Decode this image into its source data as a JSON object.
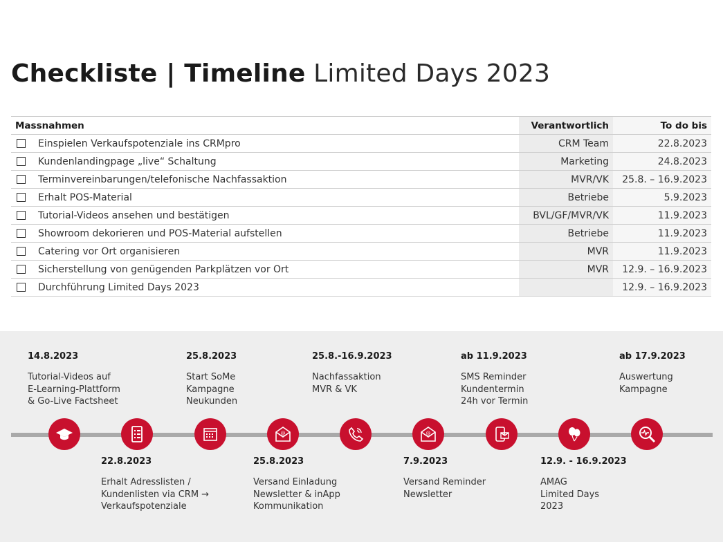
{
  "title": {
    "bold": "Checkliste | Timeline",
    "light": "Limited Days 2023"
  },
  "table": {
    "headers": {
      "task": "Massnahmen",
      "responsible": "Verantwortlich",
      "due": "To do bis"
    },
    "rows": [
      {
        "task": "Einspielen Verkaufspotenziale ins CRMpro",
        "responsible": "CRM Team",
        "due": "22.8.2023"
      },
      {
        "task": "Kundenlandingpage „live“ Schaltung",
        "responsible": "Marketing",
        "due": "24.8.2023"
      },
      {
        "task": "Terminvereinbarungen/telefonische Nachfassaktion",
        "responsible": "MVR/VK",
        "due": "25.8. – 16.9.2023"
      },
      {
        "task": "Erhalt POS-Material",
        "responsible": "Betriebe",
        "due": "5.9.2023"
      },
      {
        "task": "Tutorial-Videos ansehen und bestätigen",
        "responsible": "BVL/GF/MVR/VK",
        "due": "11.9.2023"
      },
      {
        "task": "Showroom dekorieren und POS-Material aufstellen",
        "responsible": "Betriebe",
        "due": "11.9.2023"
      },
      {
        "task": "Catering vor Ort organisieren",
        "responsible": "MVR",
        "due": "11.9.2023"
      },
      {
        "task": "Sicherstellung von genügenden Parkplätzen vor Ort",
        "responsible": "MVR",
        "due": "12.9. – 16.9.2023"
      },
      {
        "task": "Durchführung Limited Days 2023",
        "responsible": "",
        "due": "12.9. – 16.9.2023"
      }
    ]
  },
  "timeline": {
    "accent": "#c8102e",
    "top_events": [
      {
        "date": "14.8.2023",
        "lines": [
          "Tutorial-Videos auf",
          "E-Learning-Plattform",
          "& Go-Live Factsheet"
        ]
      },
      {
        "date": "25.8.2023",
        "lines": [
          "Start SoMe",
          "Kampagne",
          "Neukunden"
        ]
      },
      {
        "date": "25.8.-16.9.2023",
        "lines": [
          "Nachfassaktion",
          "MVR & VK"
        ]
      },
      {
        "date": "ab 11.9.2023",
        "lines": [
          "SMS Reminder",
          "Kundentermin",
          "24h vor Termin"
        ]
      },
      {
        "date": "ab 17.9.2023",
        "lines": [
          "Auswertung",
          "Kampagne"
        ]
      }
    ],
    "bottom_events": [
      {
        "date": "22.8.2023",
        "lines": [
          "Erhalt Adresslisten /",
          "Kundenlisten via CRM →",
          "Verkaufspotenziale"
        ]
      },
      {
        "date": "25.8.2023",
        "lines": [
          "Versand Einladung",
          "Newsletter & inApp",
          "Kommunikation"
        ]
      },
      {
        "date": "7.9.2023",
        "lines": [
          "Versand Reminder",
          "Newsletter"
        ]
      },
      {
        "date": "12.9. - 16.9.2023",
        "lines": [
          "AMAG",
          "Limited Days",
          "2023"
        ]
      }
    ],
    "milestone_icons": [
      "graduation-cap-icon",
      "checklist-icon",
      "calendar-icon",
      "email-icon",
      "phone-icon",
      "email-icon",
      "phone-message-icon",
      "balloons-icon",
      "analytics-magnifier-icon"
    ]
  }
}
